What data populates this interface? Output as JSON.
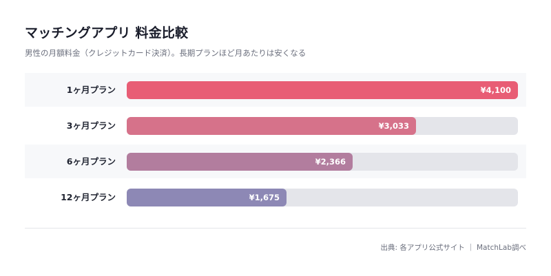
{
  "header": {
    "title": "マッチングアプリ 料金比較",
    "subtitle": "男性の月額料金（クレジットカード決済）。長期プランほど月あたりは安くなる"
  },
  "footer": {
    "source": "出典: 各アプリ公式サイト ｜ MatchLab調べ"
  },
  "chart_data": {
    "type": "bar",
    "orientation": "horizontal",
    "title": "マッチングアプリ 料金比較",
    "subtitle": "男性の月額料金（クレジットカード決済）。長期プランほど月あたりは安くなる",
    "categories": [
      "1ヶ月プラン",
      "3ヶ月プラン",
      "6ヶ月プラン",
      "12ヶ月プラン"
    ],
    "values": [
      4100,
      3033,
      2366,
      1675
    ],
    "value_labels": [
      "¥4,100",
      "¥3,033",
      "¥2,366",
      "¥1,675"
    ],
    "xlim": [
      0,
      4100
    ],
    "colors": [
      "#e85d75",
      "#d6728a",
      "#b27d9e",
      "#8d88b5"
    ],
    "track_color": "#e4e5ea",
    "row_shading_color": "#f7f8fa",
    "grid": false,
    "legend": "none"
  }
}
